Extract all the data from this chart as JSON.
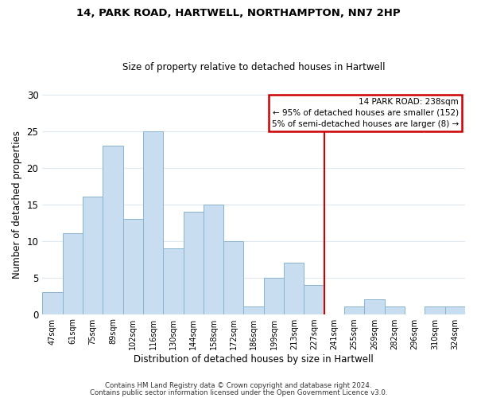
{
  "title1": "14, PARK ROAD, HARTWELL, NORTHAMPTON, NN7 2HP",
  "title2": "Size of property relative to detached houses in Hartwell",
  "xlabel": "Distribution of detached houses by size in Hartwell",
  "ylabel": "Number of detached properties",
  "footer1": "Contains HM Land Registry data © Crown copyright and database right 2024.",
  "footer2": "Contains public sector information licensed under the Open Government Licence v3.0.",
  "bar_labels": [
    "47sqm",
    "61sqm",
    "75sqm",
    "89sqm",
    "102sqm",
    "116sqm",
    "130sqm",
    "144sqm",
    "158sqm",
    "172sqm",
    "186sqm",
    "199sqm",
    "213sqm",
    "227sqm",
    "241sqm",
    "255sqm",
    "269sqm",
    "282sqm",
    "296sqm",
    "310sqm",
    "324sqm"
  ],
  "bar_values": [
    3,
    11,
    16,
    23,
    13,
    25,
    9,
    14,
    15,
    10,
    1,
    5,
    7,
    4,
    0,
    1,
    2,
    1,
    0,
    1,
    1
  ],
  "bar_color": "#c8ddf0",
  "bar_edge_color": "#8ab4d0",
  "vline_index": 14,
  "vline_color": "#cc0000",
  "annotation_title": "14 PARK ROAD: 238sqm",
  "annotation_line1": "← 95% of detached houses are smaller (152)",
  "annotation_line2": "5% of semi-detached houses are larger (8) →",
  "annotation_box_color": "#ffffff",
  "annotation_box_edge": "#cc0000",
  "ylim": [
    0,
    30
  ],
  "yticks": [
    0,
    5,
    10,
    15,
    20,
    25,
    30
  ],
  "background_color": "#ffffff",
  "grid_color": "#dde8f0"
}
